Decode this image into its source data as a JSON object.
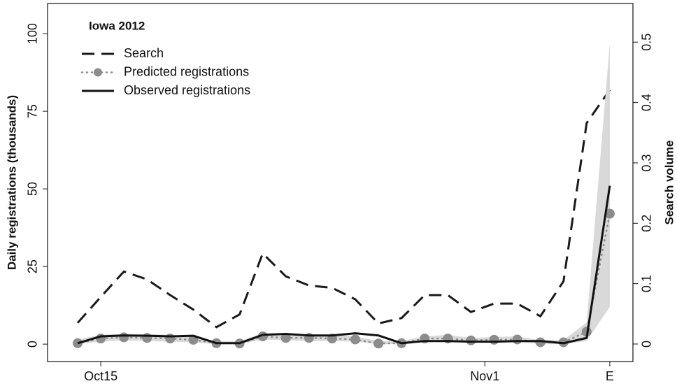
{
  "chart_data": {
    "type": "line",
    "title": "Iowa 2012",
    "y_label": "Daily registrations (thousands)",
    "y2_label": "Search volume",
    "x": [
      1,
      2,
      3,
      4,
      5,
      6,
      7,
      8,
      9,
      10,
      11,
      12,
      13,
      14,
      15,
      16,
      17,
      18,
      19,
      20,
      21,
      22,
      23,
      24
    ],
    "xlim": [
      -0.3,
      25
    ],
    "xticks": [
      {
        "value": 2,
        "label": "Oct15"
      },
      {
        "value": 18.6,
        "label": "Nov1"
      },
      {
        "value": 24,
        "label": "E"
      }
    ],
    "ylim": [
      -5.6,
      109.7
    ],
    "yticks": [
      0,
      25,
      50,
      75,
      100
    ],
    "y2lim": [
      -0.029,
      0.564
    ],
    "y2ticks": [
      0,
      0.1,
      0.2,
      0.3,
      0.4,
      0.5
    ],
    "series": [
      {
        "name": "Search",
        "color": "#1a1a1a",
        "style": "dashed",
        "axis": "y2",
        "values": [
          0.035,
          0.078,
          0.12,
          0.107,
          0.081,
          0.057,
          0.028,
          0.049,
          0.15,
          0.112,
          0.097,
          0.093,
          0.074,
          0.034,
          0.043,
          0.081,
          0.081,
          0.053,
          0.067,
          0.067,
          0.046,
          0.104,
          0.366,
          0.421
        ]
      },
      {
        "name": "Predicted registrations",
        "color": "#8c8c8c",
        "style": "dotted-points",
        "band_color": "#d9d9d9",
        "values": [
          0.3,
          1.8,
          2.2,
          2,
          1.8,
          1.4,
          0.3,
          0.2,
          2.5,
          2,
          2,
          1.8,
          1.5,
          0.2,
          0.3,
          1.8,
          1.8,
          1.2,
          1.4,
          1.5,
          0.6,
          0.6,
          4,
          42
        ],
        "lower": [
          0,
          0.8,
          1.2,
          1,
          0.8,
          0.6,
          0,
          0,
          1.5,
          1.2,
          1,
          1,
          0.8,
          0,
          0,
          0.8,
          0.8,
          0.5,
          0.6,
          0.7,
          0,
          0,
          1,
          12
        ],
        "upper": [
          1.5,
          3,
          3.3,
          3.2,
          3,
          2.5,
          1,
          1,
          3.5,
          3.5,
          3,
          3,
          2.5,
          1,
          1,
          2.5,
          3,
          2,
          2.3,
          2.5,
          1.3,
          1.3,
          7,
          97
        ]
      },
      {
        "name": "Observed registrations",
        "color": "#111111",
        "style": "solid",
        "values": [
          0.3,
          2.5,
          2.8,
          2.7,
          2.5,
          2.7,
          0.3,
          0.3,
          3,
          3.3,
          2.8,
          2.8,
          3.5,
          2.8,
          0.3,
          1,
          1,
          0.8,
          0.8,
          1,
          1,
          0.3,
          2,
          51
        ]
      }
    ]
  }
}
